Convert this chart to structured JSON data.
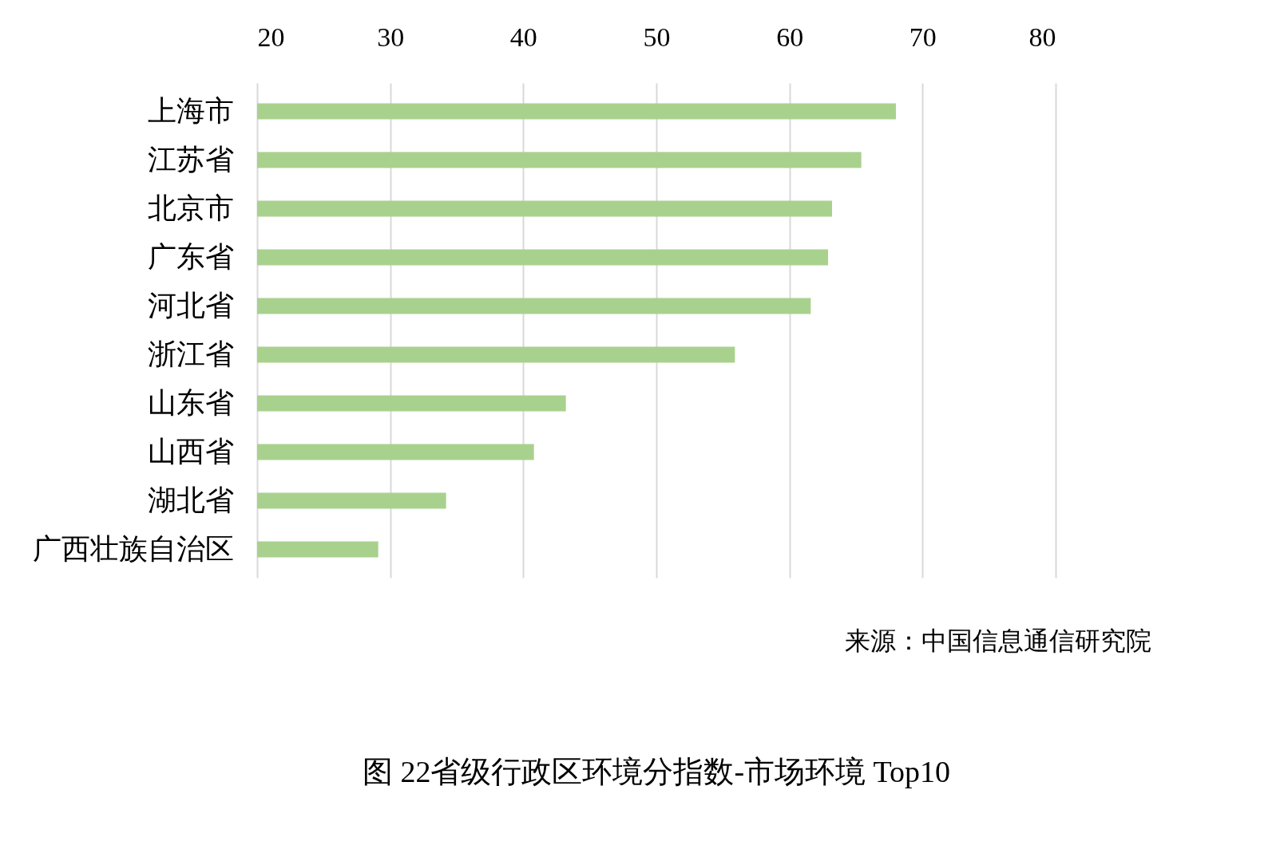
{
  "chart_data": {
    "type": "bar",
    "orientation": "horizontal",
    "title": "图 22省级行政区环境分指数-市场环境 Top10",
    "categories": [
      "上海市",
      "江苏省",
      "北京市",
      "广东省",
      "河北省",
      "浙江省",
      "山东省",
      "山西省",
      "湖北省",
      "广西壮族自治区"
    ],
    "values": [
      68.0,
      65.4,
      63.2,
      62.9,
      61.6,
      55.9,
      43.2,
      40.8,
      34.2,
      29.1
    ],
    "color": "#a9d18e",
    "xlim": [
      20,
      80
    ],
    "xticks": [
      20,
      30,
      40,
      50,
      60,
      70,
      80
    ],
    "grid": "x",
    "annotations": [
      "来源：中国信息通信研究院"
    ]
  }
}
